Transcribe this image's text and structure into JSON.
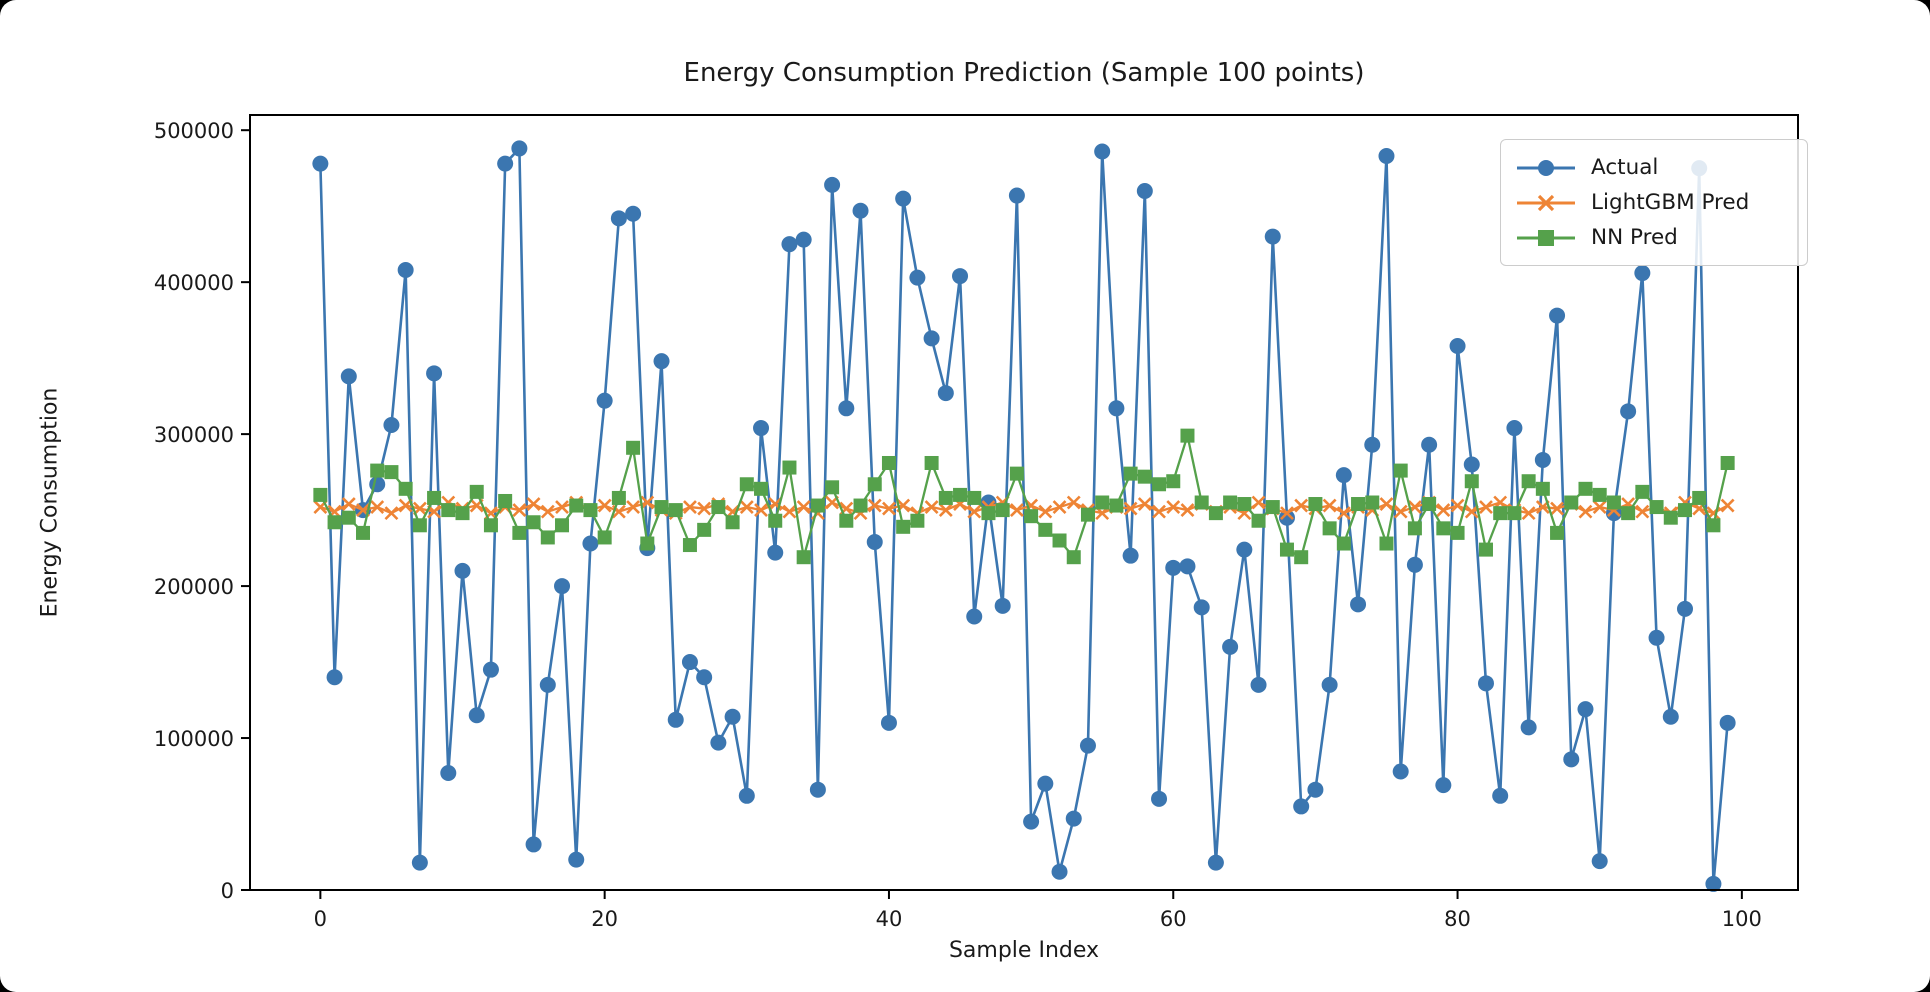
{
  "figure": {
    "title": "Energy Consumption Prediction (Sample 100 points)",
    "xlabel": "Sample Index",
    "ylabel": "Energy Consumption"
  },
  "legend": {
    "entries": [
      {
        "label": "Actual"
      },
      {
        "label": "LightGBM Pred"
      },
      {
        "label": "NN Pred"
      }
    ]
  },
  "chart_data": {
    "type": "line",
    "title": "Energy Consumption Prediction (Sample 100 points)",
    "xlabel": "Sample Index",
    "ylabel": "Energy Consumption",
    "x_ticks": [
      0,
      20,
      40,
      60,
      80,
      100
    ],
    "y_ticks": [
      0,
      100000,
      200000,
      300000,
      400000,
      500000
    ],
    "xlim": [
      -4.95,
      103.95
    ],
    "ylim": [
      0,
      510000
    ],
    "grid": false,
    "legend_position": "upper right",
    "x": [
      0,
      1,
      2,
      3,
      4,
      5,
      6,
      7,
      8,
      9,
      10,
      11,
      12,
      13,
      14,
      15,
      16,
      17,
      18,
      19,
      20,
      21,
      22,
      23,
      24,
      25,
      26,
      27,
      28,
      29,
      30,
      31,
      32,
      33,
      34,
      35,
      36,
      37,
      38,
      39,
      40,
      41,
      42,
      43,
      44,
      45,
      46,
      47,
      48,
      49,
      50,
      51,
      52,
      53,
      54,
      55,
      56,
      57,
      58,
      59,
      60,
      61,
      62,
      63,
      64,
      65,
      66,
      67,
      68,
      69,
      70,
      71,
      72,
      73,
      74,
      75,
      76,
      77,
      78,
      79,
      80,
      81,
      82,
      83,
      84,
      85,
      86,
      87,
      88,
      89,
      90,
      91,
      92,
      93,
      94,
      95,
      96,
      97,
      98,
      99
    ],
    "series": [
      {
        "name": "Actual",
        "color": "#3b76b0",
        "marker": "circle",
        "values": [
          478000,
          140000,
          338000,
          250000,
          267000,
          306000,
          408000,
          18000,
          340000,
          77000,
          210000,
          115000,
          145000,
          478000,
          488000,
          30000,
          135000,
          200000,
          20000,
          228000,
          322000,
          442000,
          445000,
          225000,
          348000,
          112000,
          150000,
          140000,
          97000,
          114000,
          62000,
          304000,
          222000,
          425000,
          428000,
          66000,
          464000,
          317000,
          447000,
          229000,
          110000,
          455000,
          403000,
          363000,
          327000,
          404000,
          180000,
          255000,
          187000,
          457000,
          45000,
          70000,
          12000,
          47000,
          95000,
          486000,
          317000,
          220000,
          460000,
          60000,
          212000,
          213000,
          186000,
          18000,
          160000,
          224000,
          135000,
          430000,
          245000,
          55000,
          66000,
          135000,
          273000,
          188000,
          293000,
          483000,
          78000,
          214000,
          293000,
          69000,
          358000,
          280000,
          136000,
          62000,
          304000,
          107000,
          283000,
          378000,
          86000,
          119000,
          19000,
          248000,
          315000,
          406000,
          166000,
          114000,
          185000,
          475000,
          4000,
          110000
        ]
      },
      {
        "name": "LightGBM Pred",
        "color": "#ee8435",
        "marker": "x",
        "values": [
          252000,
          249000,
          254000,
          250000,
          252000,
          248000,
          253000,
          251000,
          249000,
          255000,
          251000,
          253000,
          248000,
          252000,
          250000,
          254000,
          249000,
          252000,
          255000,
          250000,
          253000,
          249000,
          252000,
          255000,
          250000,
          248000,
          252000,
          251000,
          254000,
          249000,
          252000,
          250000,
          254000,
          249000,
          252000,
          248000,
          255000,
          251000,
          248000,
          253000,
          251000,
          253000,
          248000,
          252000,
          250000,
          254000,
          249000,
          252000,
          255000,
          250000,
          253000,
          249000,
          252000,
          255000,
          250000,
          248000,
          252000,
          251000,
          254000,
          249000,
          252000,
          250000,
          254000,
          249000,
          252000,
          248000,
          255000,
          251000,
          248000,
          253000,
          251000,
          253000,
          248000,
          252000,
          250000,
          254000,
          249000,
          252000,
          255000,
          250000,
          253000,
          249000,
          252000,
          255000,
          250000,
          248000,
          252000,
          251000,
          254000,
          249000,
          252000,
          250000,
          254000,
          249000,
          252000,
          248000,
          255000,
          251000,
          248000,
          253000
        ]
      },
      {
        "name": "NN Pred",
        "color": "#55a14b",
        "marker": "square",
        "values": [
          260000,
          242000,
          245000,
          235000,
          276000,
          275000,
          264000,
          240000,
          258000,
          250000,
          248000,
          262000,
          240000,
          256000,
          235000,
          242000,
          232000,
          240000,
          253000,
          250000,
          232000,
          258000,
          291000,
          228000,
          252000,
          250000,
          227000,
          237000,
          252000,
          242000,
          267000,
          264000,
          243000,
          278000,
          219000,
          253000,
          265000,
          243000,
          253000,
          267000,
          281000,
          239000,
          243000,
          281000,
          258000,
          260000,
          258000,
          248000,
          250000,
          274000,
          246000,
          237000,
          230000,
          219000,
          247000,
          255000,
          253000,
          274000,
          272000,
          267000,
          269000,
          299000,
          255000,
          248000,
          255000,
          254000,
          243000,
          252000,
          224000,
          219000,
          254000,
          238000,
          228000,
          254000,
          255000,
          228000,
          276000,
          238000,
          254000,
          238000,
          235000,
          269000,
          224000,
          248000,
          248000,
          269000,
          264000,
          235000,
          255000,
          264000,
          260000,
          255000,
          248000,
          262000,
          252000,
          245000,
          250000,
          258000,
          240000,
          281000
        ]
      }
    ]
  }
}
